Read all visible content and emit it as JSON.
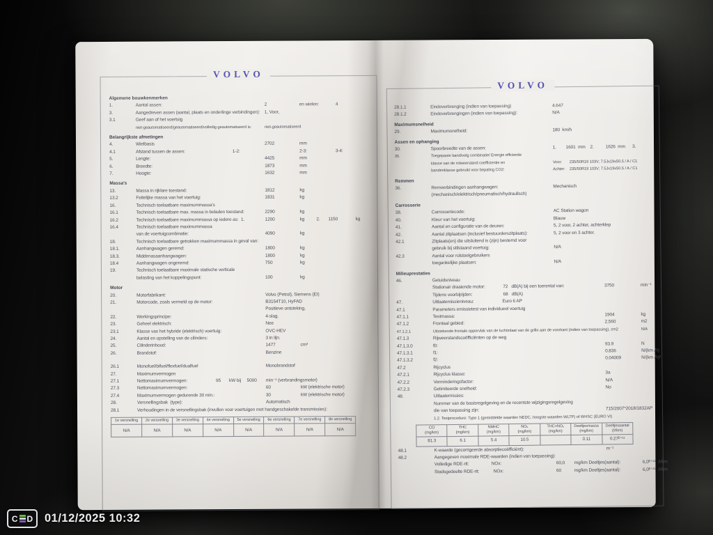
{
  "watermark": {
    "logo_c": "C",
    "logo_d": "D",
    "timestamp": "01/12/2025 10:32"
  },
  "colors": {
    "brand_blue": "#3d3ba6",
    "paper": "#edebe7",
    "ink": "#4a4e58",
    "stamp_green": "#69b843",
    "stamp_gray": "#ccd2d8",
    "stamp_purple": "#7a5bb5"
  },
  "pages": [
    {
      "brand": "VOLVO",
      "blocks": [
        {
          "t": "h",
          "x": "Algemene bouwkenmerken"
        },
        {
          "t": "r",
          "n": "1.",
          "l": "Aantal assen:",
          "v": "2",
          "u": "en wielen:              4"
        },
        {
          "t": "r",
          "n": "3.",
          "l": "Aangedreven assen (aantal, plaats en onderlinge verbindingen):",
          "v": "1, Voor,"
        },
        {
          "t": "r",
          "n": "3.1",
          "l": "Geef aan of het voertuig"
        },
        {
          "t": "r",
          "f": 1,
          "l": "niet-geautomatiseerd/geautomatiseerd/volledig geautomatiseerd is:",
          "v": "niet-geautomatiseerd"
        },
        {
          "t": "h",
          "x": "Belangrijkste afmetingen"
        },
        {
          "t": "r",
          "n": "4.",
          "l": "Wielbasis",
          "v": "2702",
          "u": "mm"
        },
        {
          "t": "r",
          "n": "4.1",
          "l": "Afstand tussen de assen:                                        1-2:",
          "u": "2-3:                        3-4:"
        },
        {
          "t": "r",
          "n": "5.",
          "l": "Lengte:",
          "v": "4425",
          "u": "mm"
        },
        {
          "t": "r",
          "n": "6.",
          "l": "Breedte:",
          "v": "1873",
          "u": "mm"
        },
        {
          "t": "r",
          "n": "7.",
          "l": "Hoogte:",
          "v": "1632",
          "u": "mm"
        },
        {
          "t": "h",
          "x": "Massa's"
        },
        {
          "t": "r",
          "n": "13.",
          "l": "Massa in rijklare toestand:",
          "v": "1812",
          "u": "kg"
        },
        {
          "t": "r",
          "n": "13.2",
          "l": "Feitelijke massa van het voertuig:",
          "v": "1831",
          "u": "kg"
        },
        {
          "t": "r",
          "n": "16.",
          "l": "Technisch toelaatbare maximummassa's"
        },
        {
          "t": "r",
          "n": "16.1",
          "l": "Technisch toelaatbare max. massa in beladen toestand:",
          "v": "2290",
          "u": "kg"
        },
        {
          "t": "r",
          "n": "16.2",
          "l": "Technisch toelaatbare maximummassa op iedere as:  1.",
          "v": "1200",
          "u": "kg          2.       1150               kg"
        },
        {
          "t": "r",
          "n": "16.4",
          "l": "Technisch toelaatbare maximummassa"
        },
        {
          "t": "r",
          "l": "van de voertuigcombinatie:",
          "v": "4090",
          "u": "kg"
        },
        {
          "t": "r",
          "n": "18.",
          "l": "Technisch toelaatbare getrokken maximummassa in geval van:"
        },
        {
          "t": "r",
          "n": "18.1.",
          "l": "Aanhangwagen geremd:",
          "v": "1800",
          "u": "kg"
        },
        {
          "t": "r",
          "n": "18.3.",
          "l": "Middenasaanhangwagen:",
          "v": "1800",
          "u": "kg"
        },
        {
          "t": "r",
          "n": "18.4",
          "l": "Aanhangwagen ongeremd:",
          "v": "750",
          "u": "kg"
        },
        {
          "t": "r",
          "n": "19.",
          "l": "Technisch toelaatbare maximale statische verticale"
        },
        {
          "t": "r",
          "l": "belasting van het koppelingspunt:",
          "v": "100",
          "u": "kg"
        },
        {
          "t": "h",
          "x": "Motor"
        },
        {
          "t": "r",
          "n": "20.",
          "l": "Motorfabrikant:",
          "v": "Volvo (Petrol), Siemens (EI)"
        },
        {
          "t": "r",
          "n": "21.",
          "l": "Motorcode, zoals vermeld op de motor:",
          "v": "B3154T10, HyFAD"
        },
        {
          "t": "r",
          "v": "Positieve ontsteking,"
        },
        {
          "t": "r",
          "n": "22.",
          "l": "Werkingsprincipe:",
          "v": "4-slag."
        },
        {
          "t": "r",
          "n": "23.",
          "l": "Geheel elektrisch:",
          "v": "Nee"
        },
        {
          "t": "r",
          "n": "23.1",
          "l": "Klasse van het hybride (elektrisch) voertuig:",
          "v": "OVC-HEV"
        },
        {
          "t": "r",
          "n": "24.",
          "l": "Aantal en opstelling van de cilinders:",
          "v": "3 in lijn."
        },
        {
          "t": "r",
          "n": "25.",
          "l": "Cilinderinhoud:",
          "v": "1477",
          "u": "cm³"
        },
        {
          "t": "r",
          "n": "26.",
          "l": "Brandstof:",
          "v": "Benzine"
        },
        {
          "t": "sp"
        },
        {
          "t": "r",
          "n": "26.1",
          "l": "Monofuel/bifuel/flexfuel/dualfuel",
          "v": "Monobrandstof"
        },
        {
          "t": "r",
          "n": "27.",
          "l": "Maximumvermogen"
        },
        {
          "t": "r",
          "n": "27.1",
          "l": "Nettomaximumvermogen:                        95       kW bij     5000",
          "v": "min⁻¹ (verbrandingsmotor)"
        },
        {
          "t": "r",
          "n": "27.3",
          "l": "Nettomaximumvermogen:",
          "v": "60",
          "u": "kW (elektrische motor)"
        },
        {
          "t": "r",
          "n": "27.4",
          "l": "Maximumvermogen gedurende 30 min.:",
          "v": "30",
          "u": "kW (elektrische motor)"
        },
        {
          "t": "r",
          "n": "28.",
          "l": "Versnellingsbak  (type):",
          "v": "Automatisch"
        },
        {
          "t": "r",
          "n": "28.1",
          "s": 1,
          "l": "Verhoudingen in de versnellingsbak (invullen voor voertuigen met handgeschakelde transmissies):"
        },
        {
          "t": "tb",
          "k": "gear",
          "head": [
            "1e versnelling",
            "2e versnelling",
            "3e versnelling",
            "4e versnelling",
            "5e versnelling",
            "6e versnelling",
            "7e versnelling",
            "8e versnelling"
          ],
          "vals": [
            "N/A",
            "N/A",
            "N/A",
            "N/A",
            "N/A",
            "N/A",
            "N/A",
            "N/A"
          ]
        }
      ]
    },
    {
      "brand": "VOLVO",
      "blocks": [
        {
          "t": "r",
          "n": "28.1.1",
          "l": "Eindoverbrenging (indien van toepassing)",
          "v": "4.647"
        },
        {
          "t": "r",
          "n": "28.1.2",
          "l": "Eindoverbrengingen (indien van toepassing):",
          "v": "N/A"
        },
        {
          "t": "h",
          "x": "Maximumsnelheid"
        },
        {
          "t": "r",
          "n": "29.",
          "l": "Maximumsnelheid:",
          "v": "180  km/h"
        },
        {
          "t": "h",
          "x": "Assen en ophanging"
        },
        {
          "t": "r",
          "n": "30.",
          "l": "Spoorbreedte van de assen:",
          "v": "1.        1601  mm    2.          1626  mm      3."
        },
        {
          "t": "r",
          "n": "35.",
          "f": 1,
          "l": "Toegepaste band/velg combinatie/ Energie efficientie"
        },
        {
          "t": "r",
          "f": 1,
          "l": "klasse van de rolweerstand coefficientie en",
          "v": "Voor:       235/50R19 103V; 7.5Jx19x50.5 / A / C1"
        },
        {
          "t": "r",
          "f": 1,
          "l": "bandenklasse gebruikt voor bepaling CO2:",
          "v": "Achter:    235/50R19 103V; 7.5Jx19x50.5 / A / C1"
        },
        {
          "t": "h",
          "x": "Remmen"
        },
        {
          "t": "r",
          "n": "36.",
          "l": "Remverbindingen aanhangwagen:",
          "v": "Mechanisch"
        },
        {
          "t": "r",
          "l": "(mechanisch/elektrisch/pneumatisch/hydraulisch)"
        },
        {
          "t": "h",
          "x": "Carrosserie"
        },
        {
          "t": "r",
          "n": "38.",
          "l": "Carrosseriecode:",
          "v": "AC Station wagon"
        },
        {
          "t": "r",
          "n": "40.",
          "l": "Kleur van het voertuig:",
          "v": "Blauw"
        },
        {
          "t": "r",
          "n": "41.",
          "l": "Aantal en configuratie van de deuren:",
          "v": "5, 2 voor, 2 achter, achterklep"
        },
        {
          "t": "r",
          "n": "42.",
          "l": "Aantal zitplaatsen (inclusief bestuurderszitplaats):",
          "v": "5, 2 voor en 3 achter."
        },
        {
          "t": "r",
          "n": "42.1",
          "l": "Zitplaats(en) die uitsluitend is (zijn) bestemd voor"
        },
        {
          "t": "r",
          "l": "gebruik bij stilstaand voertuig:",
          "v": "N/A"
        },
        {
          "t": "r",
          "n": "42.3",
          "l": "Aantal voor rolstoelgebruikers"
        },
        {
          "t": "r",
          "l": "toegankelijke plaatsen:",
          "v": "N/A"
        },
        {
          "t": "h",
          "x": "Milieuprestaties"
        },
        {
          "t": "r",
          "n": "46.",
          "l": "Geluidsniveau"
        },
        {
          "t": "r",
          "l": "Stationair draaiende motor:               72   dB(A) bij een toerental van:",
          "w": "3750",
          "u": "min⁻¹"
        },
        {
          "t": "r",
          "l": "Tijdens voorbijrijden:                          68   dB(A)"
        },
        {
          "t": "r",
          "n": "47.",
          "l": "Uitlaatemissieniveau:                        Euro 6 AP"
        },
        {
          "t": "r",
          "n": "47.1",
          "l": "Parameters emissietest van individueel voertuig"
        },
        {
          "t": "r",
          "n": "47.1.1",
          "l": "Testmassa:",
          "w": "1904",
          "u": "kg"
        },
        {
          "t": "r",
          "n": "47.1.2",
          "l": "Frontaal gebied:",
          "w": "2,560",
          "u": "m2"
        },
        {
          "t": "r",
          "n": "47.1.2.1",
          "f": 1,
          "s": 1,
          "l": "Uitstekende frontale oppervlak van de luchtinlaat van de grille aan de voorkant (indien van toepassing), cm2",
          "u": "N/A"
        },
        {
          "t": "r",
          "n": "47.1.3",
          "l": "Rijweerstandscoëfficiënten op de weg"
        },
        {
          "t": "r",
          "n": "47.1.3.0",
          "l": "f0:",
          "w": "93.9",
          "u": "N"
        },
        {
          "t": "r",
          "n": "47.1.3.1",
          "l": "f1:",
          "w": "0.836",
          "u": "N/(km /h)"
        },
        {
          "t": "r",
          "n": "47.1.3.2",
          "l": "f2:",
          "w": "0.04009",
          "u": "N/(km /h)²"
        },
        {
          "t": "r",
          "n": "47.2",
          "l": "Rijcyclus"
        },
        {
          "t": "r",
          "n": "47.2.1",
          "l": "Rijcyclus klasse:",
          "w": "3a"
        },
        {
          "t": "r",
          "n": "47.2.2",
          "l": "Verminderingsfactor:",
          "w": "N/A"
        },
        {
          "t": "r",
          "n": "47.2.3",
          "l": "Gelimiteerde snelheid:",
          "w": "No"
        },
        {
          "t": "r",
          "n": "48.",
          "l": "Uitlaatemissies:"
        },
        {
          "t": "r",
          "s": 1,
          "l": "Nummer van de basisregelgeving en de recentste wijzigingsregelgeving"
        },
        {
          "t": "r",
          "l": "die van toepassing zijn:",
          "w": "715/2007*2018/1832AP"
        },
        {
          "t": "r",
          "f": 1,
          "s": 1,
          "l": "1.2. Testprocedure: Type 1 (gemiddelde waarden NEDC, hoogste waarden WLTP) of WHSC (EURO VI)"
        },
        {
          "t": "tb",
          "k": "emis",
          "head": [
            "CO\n(mg/km)",
            "THC\n(mg/km)",
            "NMHC\n(mg/km)",
            "NOₓ\n(mg/km)",
            "THC+NOₓ\n(mg/km)",
            "Deeltjesmassa\n(mg/km)",
            "Deeltjesaantal\n(#/km)"
          ],
          "vals": [
            "81.3",
            "6.1",
            "5.4",
            "10.5",
            "",
            "0.11",
            "0.27ᴱ⁺¹¹"
          ]
        },
        {
          "t": "r",
          "n": "48.1",
          "l": "K-waarde (gecorrigeerde absorptiecoëfficiënt):",
          "w": "m⁻¹"
        },
        {
          "t": "r",
          "n": "48.2",
          "s": 1,
          "l": "Aangegeven maximale RDE-waarden (indien van toepassing):"
        },
        {
          "t": "r",
          "l": "Volledige RDE-rit:                   NOx:",
          "v": "60,0        mg/km Deeltjes(aantal):",
          "u": "6,0ᴱ⁺¹¹  #/km"
        },
        {
          "t": "r",
          "l": "Stadsgedeelte RDE-rit:            NOx:",
          "v": "60           mg/km Deeltjes(aantal):",
          "u": "6,0ᴱ⁺¹¹  #/km"
        }
      ]
    }
  ]
}
